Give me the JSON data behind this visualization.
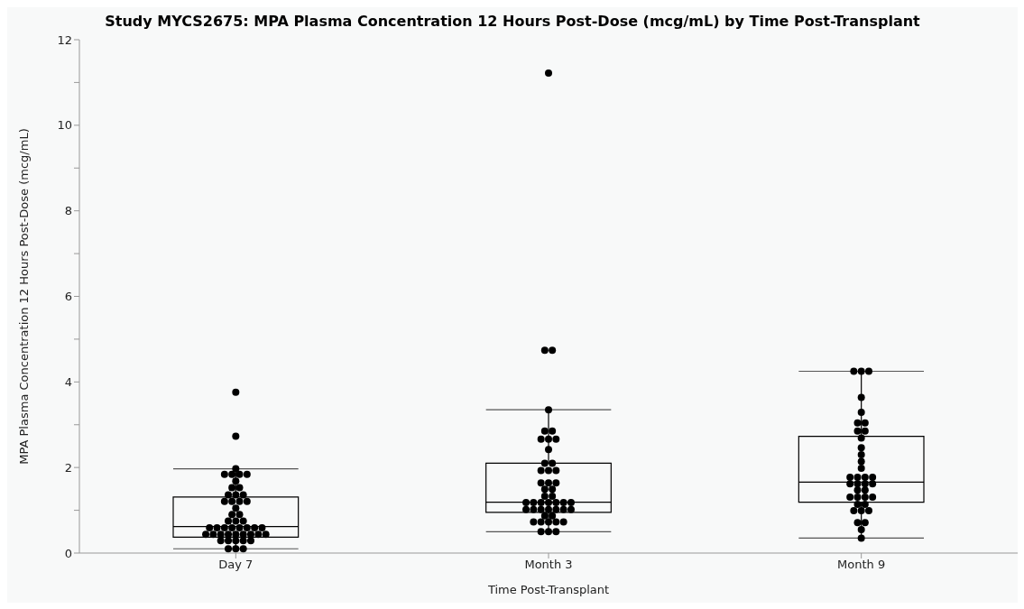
{
  "chart_data": {
    "type": "box",
    "title": "Study MYCS2675: MPA Plasma Concentration 12 Hours Post-Dose (mcg/mL) by Time Post-Transplant",
    "xlabel": "Time Post-Transplant",
    "ylabel": "MPA Plasma Concentration 12 Hours Post-Dose (mcg/mL)",
    "categories": [
      "Day 7",
      "Month 3",
      "Month 9"
    ],
    "boxes": [
      {
        "low": 0.1,
        "q1": 0.37,
        "median": 0.62,
        "q3": 1.31,
        "high": 1.97,
        "outliers": [
          3.76,
          2.73
        ]
      },
      {
        "low": 0.5,
        "q1": 0.95,
        "median": 1.19,
        "q3": 2.1,
        "high": 3.35,
        "outliers": [
          11.22,
          4.74,
          4.74
        ]
      },
      {
        "low": 0.35,
        "q1": 1.19,
        "median": 1.66,
        "q3": 2.73,
        "high": 4.25
      }
    ],
    "series": [
      {
        "type": "scatter",
        "color": "#000000",
        "x": [
          "Day 7",
          "Day 7",
          "Day 7",
          "Day 7",
          "Day 7",
          "Day 7",
          "Day 7",
          "Day 7",
          "Day 7",
          "Day 7",
          "Day 7",
          "Day 7",
          "Day 7",
          "Day 7",
          "Day 7",
          "Day 7",
          "Day 7",
          "Day 7",
          "Day 7",
          "Day 7",
          "Day 7",
          "Day 7",
          "Day 7",
          "Day 7",
          "Day 7",
          "Day 7",
          "Day 7",
          "Day 7",
          "Day 7",
          "Day 7",
          "Day 7",
          "Day 7",
          "Day 7",
          "Day 7",
          "Day 7",
          "Day 7",
          "Day 7",
          "Day 7",
          "Day 7",
          "Day 7",
          "Day 7",
          "Day 7",
          "Day 7",
          "Day 7",
          "Day 7",
          "Day 7",
          "Month 3",
          "Month 3",
          "Month 3",
          "Month 3",
          "Month 3",
          "Month 3",
          "Month 3",
          "Month 3",
          "Month 3",
          "Month 3",
          "Month 3",
          "Month 3",
          "Month 3",
          "Month 3",
          "Month 3",
          "Month 3",
          "Month 3",
          "Month 3",
          "Month 3",
          "Month 3",
          "Month 3",
          "Month 3",
          "Month 3",
          "Month 3",
          "Month 3",
          "Month 3",
          "Month 3",
          "Month 3",
          "Month 3",
          "Month 3",
          "Month 3",
          "Month 3",
          "Month 3",
          "Month 3",
          "Month 3",
          "Month 3",
          "Month 3",
          "Month 3",
          "Month 3",
          "Month 3",
          "Month 3",
          "Month 3",
          "Month 3",
          "Month 9",
          "Month 9",
          "Month 9",
          "Month 9",
          "Month 9",
          "Month 9",
          "Month 9",
          "Month 9",
          "Month 9",
          "Month 9",
          "Month 9",
          "Month 9",
          "Month 9",
          "Month 9",
          "Month 9",
          "Month 9",
          "Month 9",
          "Month 9",
          "Month 9",
          "Month 9",
          "Month 9",
          "Month 9",
          "Month 9",
          "Month 9",
          "Month 9",
          "Month 9",
          "Month 9",
          "Month 9",
          "Month 9",
          "Month 9",
          "Month 9",
          "Month 9",
          "Month 9",
          "Month 9",
          "Month 9",
          "Month 9",
          "Month 9"
        ],
        "values": [
          1.97,
          1.84,
          1.84,
          1.84,
          1.84,
          1.68,
          1.53,
          1.53,
          1.36,
          1.36,
          1.36,
          1.21,
          1.21,
          1.21,
          1.21,
          1.05,
          0.9,
          0.9,
          0.75,
          0.75,
          0.75,
          0.59,
          0.59,
          0.59,
          0.59,
          0.59,
          0.59,
          0.59,
          0.59,
          0.44,
          0.44,
          0.44,
          0.44,
          0.44,
          0.44,
          0.44,
          0.44,
          0.44,
          0.29,
          0.29,
          0.29,
          0.29,
          0.29,
          0.1,
          0.1,
          0.1,
          3.35,
          2.85,
          2.85,
          2.66,
          2.66,
          2.66,
          2.42,
          2.1,
          2.1,
          1.93,
          1.93,
          1.93,
          1.64,
          1.64,
          1.64,
          1.49,
          1.49,
          1.33,
          1.33,
          1.18,
          1.18,
          1.18,
          1.18,
          1.18,
          1.18,
          1.18,
          1.02,
          1.02,
          1.02,
          1.02,
          1.02,
          1.02,
          1.02,
          0.87,
          0.87,
          0.73,
          0.73,
          0.73,
          0.73,
          0.73,
          0.5,
          0.5,
          0.5,
          4.25,
          4.25,
          4.25,
          3.64,
          3.29,
          3.04,
          3.04,
          2.85,
          2.85,
          2.69,
          2.46,
          2.3,
          2.14,
          1.98,
          1.77,
          1.77,
          1.77,
          1.77,
          1.62,
          1.62,
          1.62,
          1.62,
          1.47,
          1.47,
          1.31,
          1.31,
          1.31,
          1.31,
          1.14,
          1.14,
          0.99,
          0.99,
          0.99,
          0.71,
          0.71,
          0.55,
          0.35
        ]
      }
    ],
    "ylim": [
      0,
      12
    ],
    "yticks": [
      0,
      {
        "value": 1,
        "label": null
      },
      2,
      {
        "value": 3,
        "label": null
      },
      4,
      {
        "value": 5,
        "label": null
      },
      6,
      {
        "value": 7,
        "label": null
      },
      8,
      {
        "value": 9,
        "label": null
      },
      10,
      {
        "value": 11,
        "label": null
      },
      12
    ],
    "marker": "circle",
    "grid": false,
    "legend": false
  }
}
